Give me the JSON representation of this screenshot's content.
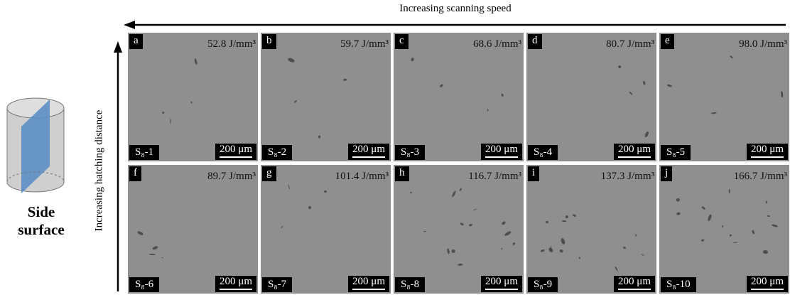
{
  "header": {
    "scan_label": "Increasing scanning speed",
    "hatch_label": "Increasing hatching distance"
  },
  "sample": {
    "label_line1": "Side",
    "label_line2": "surface"
  },
  "panels": [
    {
      "letter": "a",
      "energy": "52.8 J/mm³",
      "name": "S₈-1",
      "scale": "200 μm"
    },
    {
      "letter": "b",
      "energy": "59.7 J/mm³",
      "name": "S₈-2",
      "scale": "200 μm"
    },
    {
      "letter": "c",
      "energy": "68.6 J/mm³",
      "name": "S₈-3",
      "scale": "200 μm"
    },
    {
      "letter": "d",
      "energy": "80.7 J/mm³",
      "name": "S₈-4",
      "scale": "200 μm"
    },
    {
      "letter": "e",
      "energy": "98.0 J/mm³",
      "name": "S₈-5",
      "scale": "200 μm"
    },
    {
      "letter": "f",
      "energy": "89.7 J/mm³",
      "name": "S₈-6",
      "scale": "200 μm"
    },
    {
      "letter": "g",
      "energy": "101.4 J/mm³",
      "name": "S₈-7",
      "scale": "200 μm"
    },
    {
      "letter": "h",
      "energy": "116.7 J/mm³",
      "name": "S₈-8",
      "scale": "200 μm"
    },
    {
      "letter": "i",
      "energy": "137.3 J/mm³",
      "name": "S₈-9",
      "scale": "200 μm"
    },
    {
      "letter": "j",
      "energy": "166.7 J/mm³",
      "name": "S₈-10",
      "scale": "200 μm"
    }
  ]
}
